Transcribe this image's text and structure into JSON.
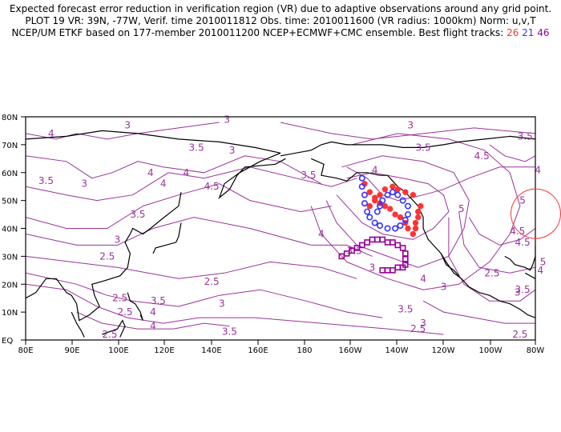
{
  "header": {
    "line1": "Expected forecast error reduction in verification region (VR) due to adaptive observations around any grid point.",
    "line2": "PLOT 19 VR: 39N, -77W, Verif. time 2010011812 Obs. time: 2010011600 (VR radius: 1000km) Norm: u,v,T",
    "line3_prefix": "NCEP/UM ETKF based on 177-member 2010011200 NCEP+ECMWF+CMC ensemble. Best flight tracks:",
    "track_red_label": "26",
    "track_blue_label": "21",
    "track_purple_label": "46"
  },
  "colors": {
    "contour": "#993399",
    "coast": "#000000",
    "track_red": "#ff3333",
    "track_blue": "#3333ff",
    "track_purple": "#990099",
    "vr_circle": "#ff3333"
  },
  "chart_data": {
    "type": "contour-map",
    "x_axis": {
      "range": [
        80,
        280
      ],
      "tick_labels": [
        "80E",
        "90E",
        "100E",
        "120E",
        "140E",
        "160E",
        "180",
        "160W",
        "140W",
        "120W",
        "100W",
        "80W"
      ]
    },
    "y_axis": {
      "range": [
        0,
        80
      ],
      "tick_labels": [
        "EQ",
        "10N",
        "20N",
        "30N",
        "40N",
        "50N",
        "60N",
        "70N",
        "80N"
      ]
    },
    "verification_region": {
      "lat": 39,
      "lon": -77,
      "radius_km": 1000
    },
    "contour_labels": [
      {
        "text": "4",
        "lon": 90,
        "lat": 74
      },
      {
        "text": "3",
        "lon": 120,
        "lat": 77
      },
      {
        "text": "3",
        "lon": 159,
        "lat": 79
      },
      {
        "text": "3.5",
        "lon": 88,
        "lat": 57
      },
      {
        "text": "3",
        "lon": 103,
        "lat": 56
      },
      {
        "text": "4",
        "lon": 129,
        "lat": 60
      },
      {
        "text": "3.5",
        "lon": 147,
        "lat": 69
      },
      {
        "text": "3",
        "lon": 161,
        "lat": 68
      },
      {
        "text": "3.5",
        "lon": 191,
        "lat": 59
      },
      {
        "text": "4",
        "lon": 143,
        "lat": 60
      },
      {
        "text": "4",
        "lon": 134,
        "lat": 56
      },
      {
        "text": "4.5",
        "lon": 153,
        "lat": 55
      },
      {
        "text": "3.5",
        "lon": 124,
        "lat": 45
      },
      {
        "text": "3",
        "lon": 116,
        "lat": 36
      },
      {
        "text": "4",
        "lon": 196,
        "lat": 38
      },
      {
        "text": "2.5",
        "lon": 112,
        "lat": 30
      },
      {
        "text": "3.5",
        "lon": 209,
        "lat": 32
      },
      {
        "text": "3",
        "lon": 216,
        "lat": 26
      },
      {
        "text": "2.5",
        "lon": 153,
        "lat": 21
      },
      {
        "text": "2.5",
        "lon": 117,
        "lat": 15
      },
      {
        "text": "2.5",
        "lon": 119,
        "lat": 10
      },
      {
        "text": "3.5",
        "lon": 132,
        "lat": 14
      },
      {
        "text": "4",
        "lon": 130,
        "lat": 10
      },
      {
        "text": "4",
        "lon": 130,
        "lat": 5
      },
      {
        "text": "3",
        "lon": 157,
        "lat": 13
      },
      {
        "text": "3.5",
        "lon": 160,
        "lat": 3
      },
      {
        "text": "2.5",
        "lon": 113,
        "lat": 2
      },
      {
        "text": "3",
        "lon": 231,
        "lat": 77
      },
      {
        "text": "3.5",
        "lon": 236,
        "lat": 69
      },
      {
        "text": "4.5",
        "lon": 259,
        "lat": 66
      },
      {
        "text": "3.5",
        "lon": 276,
        "lat": 73
      },
      {
        "text": "4",
        "lon": 281,
        "lat": 61
      },
      {
        "text": "5",
        "lon": 275,
        "lat": 50
      },
      {
        "text": "4",
        "lon": 217,
        "lat": 61
      },
      {
        "text": "5",
        "lon": 251,
        "lat": 47
      },
      {
        "text": "4.5",
        "lon": 273,
        "lat": 39
      },
      {
        "text": "4.5",
        "lon": 275,
        "lat": 35
      },
      {
        "text": "5",
        "lon": 283,
        "lat": 28
      },
      {
        "text": "4",
        "lon": 282,
        "lat": 25
      },
      {
        "text": "3",
        "lon": 273,
        "lat": 17
      },
      {
        "text": "3.5",
        "lon": 275,
        "lat": 18
      },
      {
        "text": "2.5",
        "lon": 263,
        "lat": 24
      },
      {
        "text": "3",
        "lon": 244,
        "lat": 19
      },
      {
        "text": "3.5",
        "lon": 229,
        "lat": 11
      },
      {
        "text": "2.5",
        "lon": 234,
        "lat": 4
      },
      {
        "text": "3",
        "lon": 236,
        "lat": 6
      },
      {
        "text": "2.5",
        "lon": 274,
        "lat": 2
      },
      {
        "text": "4",
        "lon": 236,
        "lat": 22
      }
    ],
    "flight_tracks": [
      {
        "name": "26",
        "marker": "circle-filled",
        "color": "#ff3333",
        "points": [
          [
            213,
            56
          ],
          [
            215,
            53
          ],
          [
            217,
            51
          ],
          [
            219,
            49
          ],
          [
            221,
            48
          ],
          [
            223,
            47
          ],
          [
            225,
            45
          ],
          [
            227,
            44
          ],
          [
            229,
            42
          ],
          [
            230,
            40
          ],
          [
            232,
            38
          ],
          [
            233,
            40
          ],
          [
            233,
            42
          ],
          [
            234,
            44
          ],
          [
            234,
            46
          ],
          [
            235,
            48
          ],
          [
            232,
            52
          ],
          [
            229,
            53
          ],
          [
            226,
            54
          ],
          [
            224,
            55
          ],
          [
            221,
            54
          ],
          [
            219,
            52
          ],
          [
            217,
            50
          ],
          [
            215,
            48
          ]
        ]
      },
      {
        "name": "21",
        "marker": "circle-open",
        "color": "#3333ff",
        "points": [
          [
            212,
            58
          ],
          [
            212,
            55
          ],
          [
            213,
            52
          ],
          [
            213,
            49
          ],
          [
            214,
            46
          ],
          [
            215,
            44
          ],
          [
            217,
            42
          ],
          [
            219,
            41
          ],
          [
            222,
            40
          ],
          [
            225,
            40
          ],
          [
            227,
            41
          ],
          [
            229,
            43
          ],
          [
            230,
            45
          ],
          [
            230,
            48
          ],
          [
            228,
            50
          ],
          [
            226,
            52
          ],
          [
            224,
            53
          ],
          [
            222,
            52
          ],
          [
            220,
            50
          ],
          [
            219,
            48
          ],
          [
            218,
            46
          ]
        ]
      },
      {
        "name": "46",
        "marker": "square-open",
        "color": "#990099",
        "points": [
          [
            204,
            30
          ],
          [
            206,
            31
          ],
          [
            208,
            32
          ],
          [
            210,
            33
          ],
          [
            212,
            34
          ],
          [
            214,
            35
          ],
          [
            216,
            36
          ],
          [
            218,
            36
          ],
          [
            220,
            36
          ],
          [
            222,
            35
          ],
          [
            224,
            35
          ],
          [
            226,
            34
          ],
          [
            228,
            33
          ],
          [
            229,
            31
          ],
          [
            229,
            29
          ],
          [
            229,
            27
          ],
          [
            228,
            26
          ],
          [
            226,
            26
          ],
          [
            224,
            25
          ],
          [
            222,
            25
          ],
          [
            220,
            25
          ]
        ]
      }
    ]
  }
}
